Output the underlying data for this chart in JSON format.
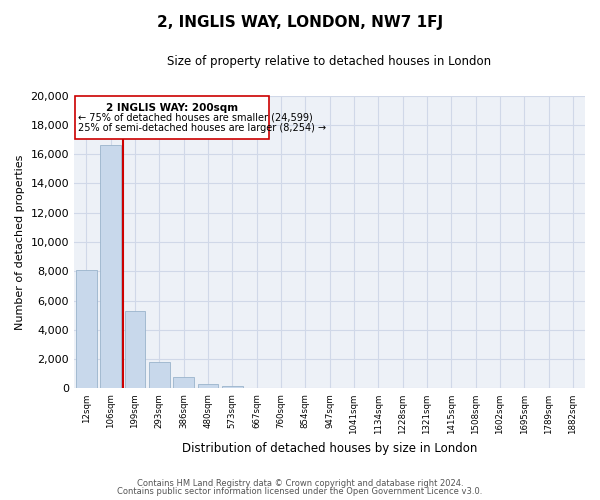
{
  "title": "2, INGLIS WAY, LONDON, NW7 1FJ",
  "subtitle": "Size of property relative to detached houses in London",
  "xlabel": "Distribution of detached houses by size in London",
  "ylabel": "Number of detached properties",
  "bar_color": "#c8d8eb",
  "bar_edge_color": "#9ab4cc",
  "property_line_color": "#cc0000",
  "property_label": "2 INGLIS WAY: 200sqm",
  "annotation_line1": "← 75% of detached houses are smaller (24,599)",
  "annotation_line2": "25% of semi-detached houses are larger (8,254) →",
  "categories": [
    "12sqm",
    "106sqm",
    "199sqm",
    "293sqm",
    "386sqm",
    "480sqm",
    "573sqm",
    "667sqm",
    "760sqm",
    "854sqm",
    "947sqm",
    "1041sqm",
    "1134sqm",
    "1228sqm",
    "1321sqm",
    "1415sqm",
    "1508sqm",
    "1602sqm",
    "1695sqm",
    "1789sqm",
    "1882sqm"
  ],
  "values": [
    8100,
    16600,
    5300,
    1800,
    750,
    300,
    200,
    0,
    0,
    0,
    0,
    0,
    0,
    0,
    0,
    0,
    0,
    0,
    0,
    0,
    0
  ],
  "ylim": [
    0,
    20000
  ],
  "yticks": [
    0,
    2000,
    4000,
    6000,
    8000,
    10000,
    12000,
    14000,
    16000,
    18000,
    20000
  ],
  "grid_color": "#d0d8e8",
  "footnote1": "Contains HM Land Registry data © Crown copyright and database right 2024.",
  "footnote2": "Contains public sector information licensed under the Open Government Licence v3.0.",
  "background_color": "#edf1f7"
}
